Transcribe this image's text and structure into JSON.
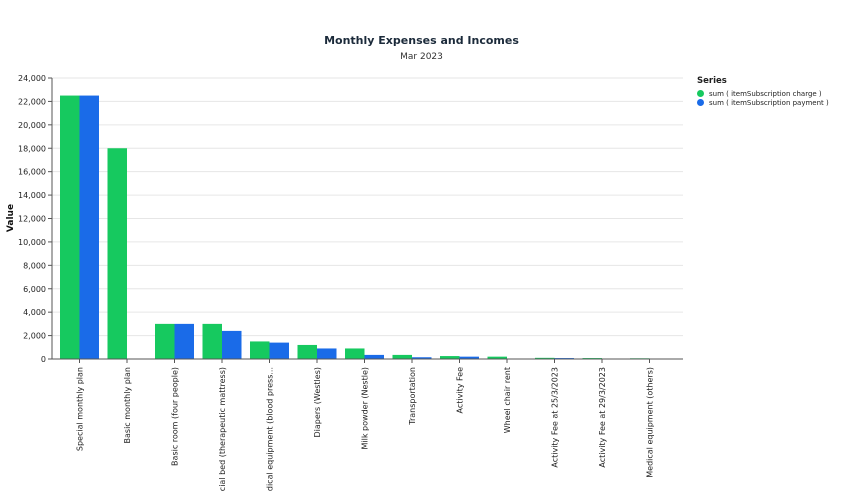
{
  "colors": {
    "charge": "#16c95f",
    "payment": "#1a6be8",
    "grid": "#e6e6e6",
    "axis": "#555555"
  },
  "chart_data": {
    "type": "bar",
    "title": "Monthly Expenses and Incomes",
    "subtitle": "Mar 2023",
    "xlabel": "",
    "ylabel": "Value",
    "ylim": [
      0,
      24000
    ],
    "yticks": [
      0,
      2000,
      4000,
      6000,
      8000,
      10000,
      12000,
      14000,
      16000,
      18000,
      20000,
      22000,
      24000
    ],
    "ytick_labels": [
      "0",
      "2,000",
      "4,000",
      "6,000",
      "8,000",
      "10,000",
      "12,000",
      "14,000",
      "16,000",
      "18,000",
      "20,000",
      "22,000",
      "24,000"
    ],
    "grid": true,
    "legend_title": "Series",
    "legend_position": "top-right",
    "categories": [
      "Special monthly plan",
      "Basic monthly plan",
      "Basic room (four people)",
      "Special bed (therapeutic mattress)",
      "Medical equipment (blood press...",
      "Diapers (Westles)",
      "Milk powder (Nestle)",
      "Transportation",
      "Activity Fee",
      "Wheel chair rent",
      "Activity Fee at 25/3/2023",
      "Activity Fee at 29/3/2023",
      "Medical equipment (others)"
    ],
    "series": [
      {
        "name": "sum ( itemSubscription charge )",
        "values": [
          22500,
          18000,
          3000,
          3000,
          1500,
          1200,
          900,
          350,
          250,
          200,
          100,
          80,
          60
        ]
      },
      {
        "name": "sum ( itemSubscription payment )",
        "values": [
          22500,
          0,
          3000,
          2400,
          1400,
          900,
          350,
          150,
          200,
          0,
          80,
          0,
          0
        ]
      }
    ]
  }
}
